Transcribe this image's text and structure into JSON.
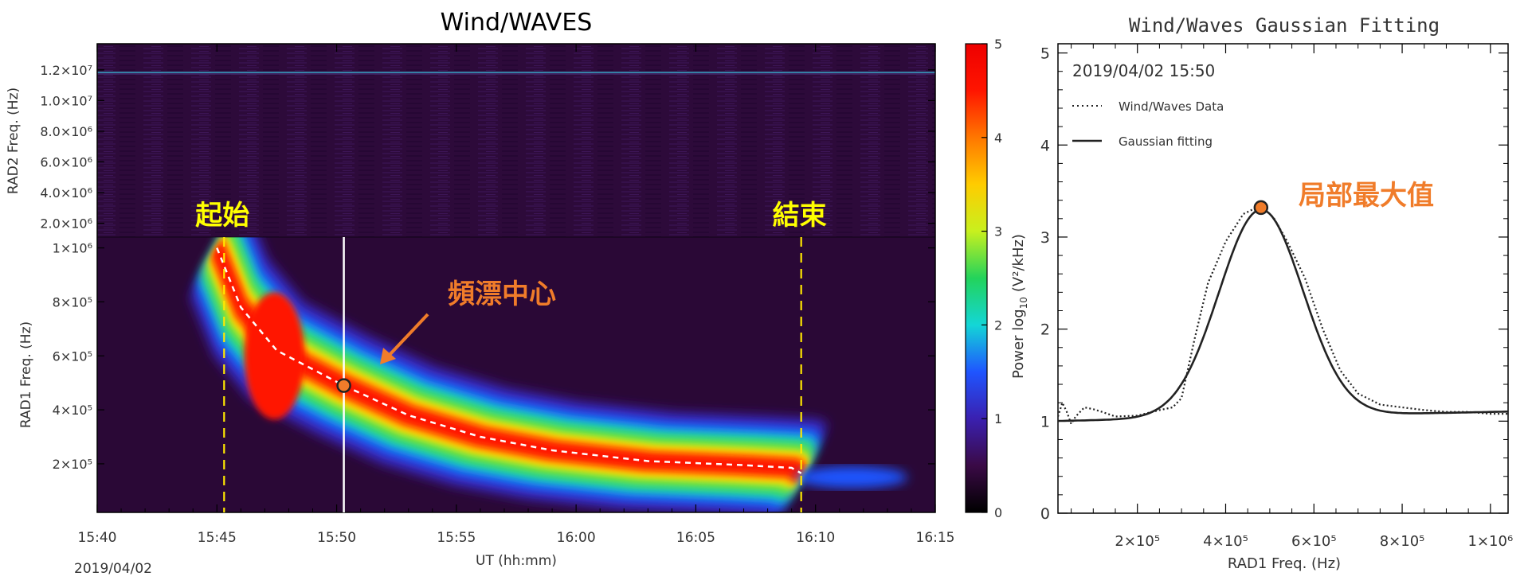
{
  "chart_data": [
    {
      "type": "heatmap",
      "title": "Wind/WAVES",
      "date_label": "2019/04/02",
      "xlabel": "UT (hh:mm)",
      "x_ticks": [
        "15:40",
        "15:45",
        "15:50",
        "15:55",
        "16:00",
        "16:05",
        "16:10",
        "16:15"
      ],
      "xlim_minutes": [
        0,
        35
      ],
      "upper_panel": {
        "ylabel": "RAD2 Freq. (Hz)",
        "y_ticks": [
          {
            "label": "1.2×10⁷",
            "value": 12000000
          },
          {
            "label": "1.0×10⁷",
            "value": 10000000
          },
          {
            "label": "8.0×10⁶",
            "value": 8000000
          },
          {
            "label": "6.0×10⁶",
            "value": 6000000
          },
          {
            "label": "4.0×10⁶",
            "value": 4000000
          },
          {
            "label": "2.0×10⁶",
            "value": 2000000
          }
        ],
        "ylim": [
          1100000,
          13700000
        ]
      },
      "lower_panel": {
        "ylabel": "RAD1 Freq. (Hz)",
        "y_ticks": [
          {
            "label": "1×10⁶",
            "value": 1000000
          },
          {
            "label": "8×10⁵",
            "value": 800000
          },
          {
            "label": "6×10⁵",
            "value": 600000
          },
          {
            "label": "4×10⁵",
            "value": 400000
          },
          {
            "label": "2×10⁵",
            "value": 200000
          }
        ],
        "ylim": [
          20000,
          1040000
        ]
      },
      "colorbar": {
        "ticks": [
          "0",
          "1",
          "2",
          "3",
          "4",
          "5"
        ],
        "range": [
          0,
          5
        ],
        "colors": [
          "#000000",
          "#3a0a46",
          "#3a20b0",
          "#1f55ff",
          "#13d6d6",
          "#23d35b",
          "#c8f01e",
          "#ffcc00",
          "#ff7700",
          "#ff1500",
          "#ee0000"
        ]
      },
      "drift_center": [
        {
          "x": 5.0,
          "y": 1000000
        },
        {
          "x": 6.0,
          "y": 780000
        },
        {
          "x": 7.5,
          "y": 620000
        },
        {
          "x": 10.3,
          "y": 490000
        },
        {
          "x": 13.0,
          "y": 380000
        },
        {
          "x": 16.0,
          "y": 300000
        },
        {
          "x": 19.0,
          "y": 250000
        },
        {
          "x": 23.0,
          "y": 210000
        },
        {
          "x": 27.0,
          "y": 195000
        },
        {
          "x": 29.0,
          "y": 185000
        },
        {
          "x": 29.4,
          "y": 165000
        }
      ],
      "markers": [
        {
          "label": "起始",
          "x": 5.3
        },
        {
          "label": "結束",
          "x": 29.4
        }
      ],
      "cursor_x": 10.3,
      "center_point": {
        "x": 10.3,
        "y": 490000
      },
      "annotation_label": "頻漂中心"
    },
    {
      "type": "line",
      "title": "Wind/Waves Gaussian Fitting",
      "timestamp": "2019/04/02 15:50",
      "xlabel": "RAD1 Freq. (Hz)",
      "ylabel_prefix": "Power log",
      "ylabel_sub": "10",
      "ylabel_units": "(V²/kHz)",
      "xlim": [
        20000,
        1040000
      ],
      "ylim": [
        0,
        5.1
      ],
      "x_ticks": [
        {
          "label": "2×10⁵",
          "value": 200000
        },
        {
          "label": "4×10⁵",
          "value": 400000
        },
        {
          "label": "6×10⁵",
          "value": 600000
        },
        {
          "label": "8×10⁵",
          "value": 800000
        },
        {
          "label": "1×10⁶",
          "value": 1000000
        }
      ],
      "y_ticks": [
        "0",
        "1",
        "2",
        "3",
        "4",
        "5"
      ],
      "legend": [
        {
          "name": "Wind/Waves Data",
          "style": "dotted"
        },
        {
          "name": "Gaussian fitting",
          "style": "solid"
        }
      ],
      "series": [
        {
          "name": "Wind/Waves Data",
          "points": [
            [
              20000,
              1.05
            ],
            [
              30000,
              1.2
            ],
            [
              40000,
              1.1
            ],
            [
              50000,
              0.97
            ],
            [
              60000,
              1.05
            ],
            [
              70000,
              1.1
            ],
            [
              80000,
              1.15
            ],
            [
              100000,
              1.13
            ],
            [
              120000,
              1.1
            ],
            [
              150000,
              1.05
            ],
            [
              200000,
              1.06
            ],
            [
              250000,
              1.12
            ],
            [
              280000,
              1.15
            ],
            [
              300000,
              1.25
            ],
            [
              330000,
              1.9
            ],
            [
              360000,
              2.5
            ],
            [
              400000,
              2.95
            ],
            [
              440000,
              3.25
            ],
            [
              470000,
              3.32
            ],
            [
              490000,
              3.3
            ],
            [
              510000,
              3.2
            ],
            [
              540000,
              2.95
            ],
            [
              580000,
              2.55
            ],
            [
              620000,
              2.0
            ],
            [
              660000,
              1.55
            ],
            [
              700000,
              1.3
            ],
            [
              750000,
              1.18
            ],
            [
              800000,
              1.15
            ],
            [
              850000,
              1.12
            ],
            [
              900000,
              1.1
            ],
            [
              950000,
              1.1
            ],
            [
              1000000,
              1.08
            ],
            [
              1040000,
              1.08
            ]
          ]
        },
        {
          "name": "Gaussian fitting",
          "gaussian": {
            "amplitude": 2.25,
            "center": 480000,
            "sigma": 95000,
            "baseline": 1.0
          },
          "baseline_slope_per_mhz": 0.1
        }
      ],
      "peak_point": {
        "x": 480000,
        "y": 3.32
      },
      "annotation_label": "局部最大值"
    }
  ]
}
